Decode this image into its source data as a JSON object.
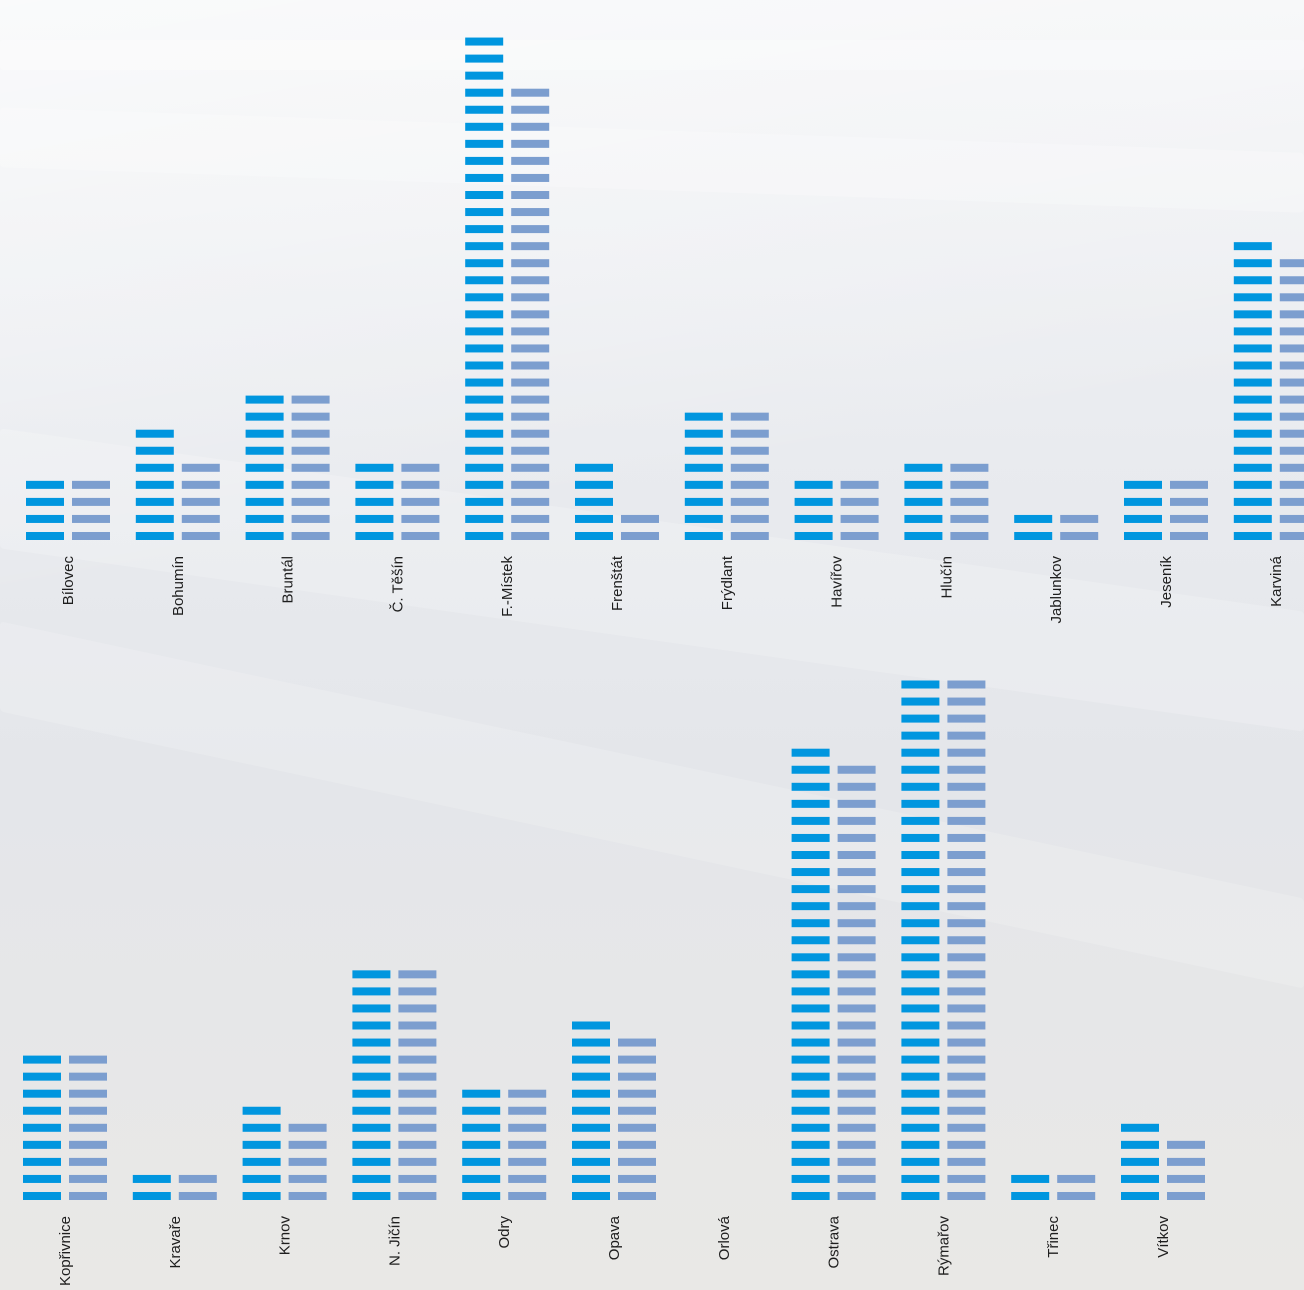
{
  "chart_data": {
    "type": "bar",
    "unit_style": "stacked segments",
    "colors": {
      "series_1": "#0096df",
      "series_2": "#7c9ecf"
    },
    "panels": [
      {
        "categories": [
          "Bílovec",
          "Bohumín",
          "Bruntál",
          "Č. Těšín",
          "F.-Místek",
          "Frenštát",
          "Frýdlant",
          "Havířov",
          "Hlučín",
          "Jablunkov",
          "Jeseník",
          "Karviná"
        ],
        "series": [
          {
            "values": [
              4,
              7,
              9,
              5,
              30,
              5,
              8,
              4,
              5,
              2,
              4,
              18
            ]
          },
          {
            "values": [
              4,
              5,
              9,
              5,
              27,
              2,
              8,
              4,
              5,
              2,
              4,
              17
            ]
          }
        ]
      },
      {
        "categories": [
          "Kopřivnice",
          "Kravaře",
          "Krnov",
          "N. Jičín",
          "Odry",
          "Opava",
          "Orlová",
          "Ostrava",
          "Rýmařov",
          "Třinec",
          "Vítkov"
        ],
        "series": [
          {
            "values": [
              9,
              2,
              6,
              14,
              7,
              11,
              0,
              27,
              31,
              2,
              5
            ]
          },
          {
            "values": [
              9,
              2,
              5,
              14,
              7,
              10,
              0,
              26,
              31,
              2,
              4
            ]
          }
        ]
      }
    ]
  }
}
